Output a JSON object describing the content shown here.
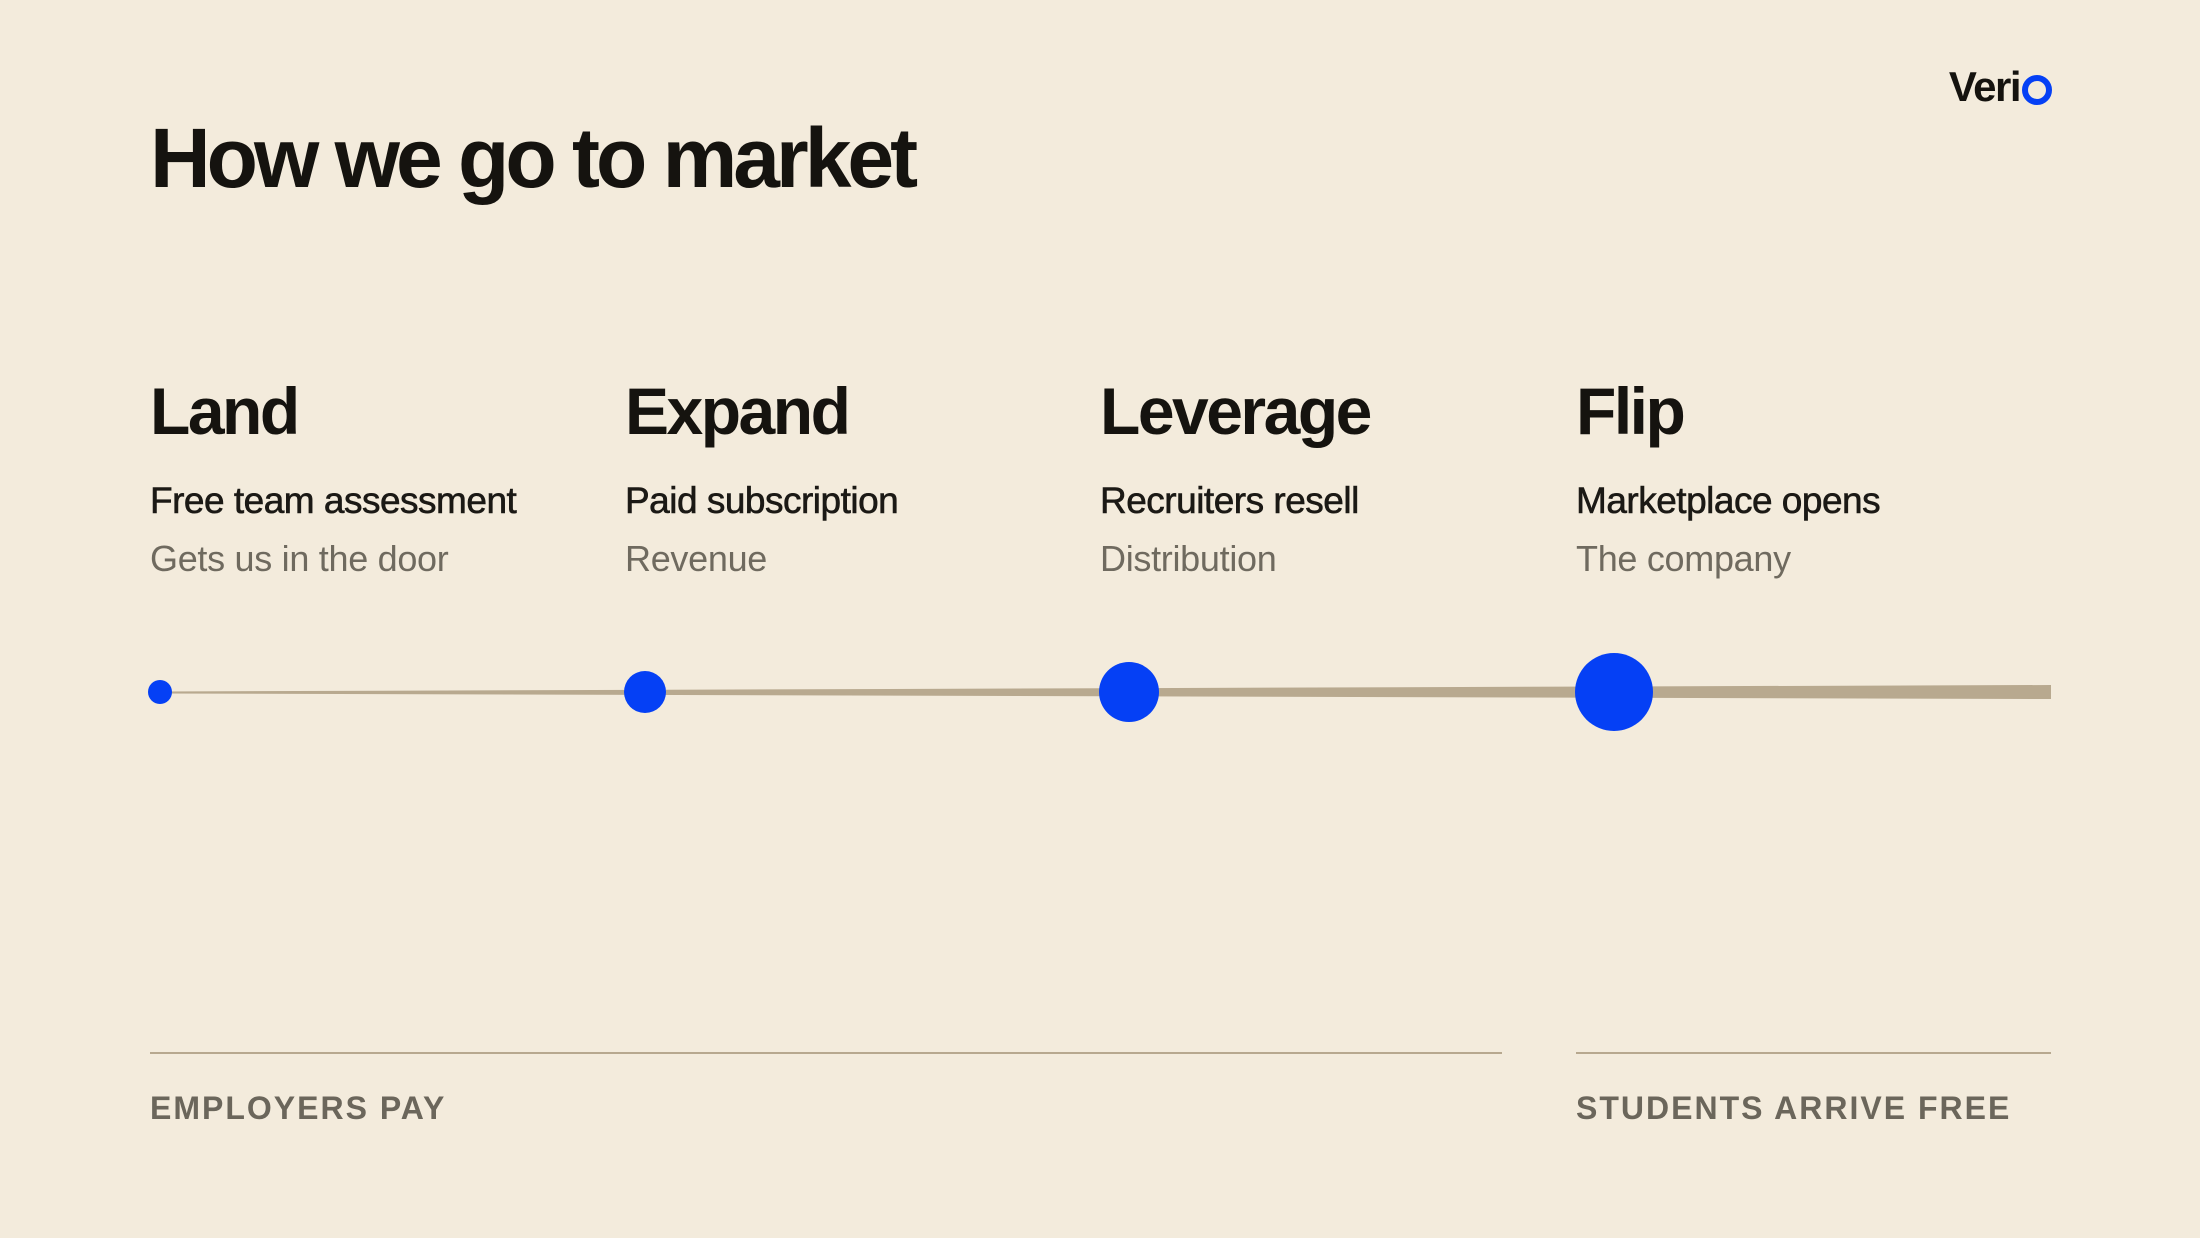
{
  "logo": {
    "text": "Veri"
  },
  "title": "How we go to market",
  "stages": [
    {
      "name": "Land",
      "subtitle": "Free team assessment",
      "note": "Gets us in the door"
    },
    {
      "name": "Expand",
      "subtitle": "Paid subscription",
      "note": "Revenue"
    },
    {
      "name": "Leverage",
      "subtitle": "Recruiters resell",
      "note": "Distribution"
    },
    {
      "name": "Flip",
      "subtitle": "Marketplace opens",
      "note": "The company"
    }
  ],
  "footer": {
    "left_label": "EMPLOYERS PAY",
    "right_label": "STUDENTS ARRIVE FREE"
  },
  "colors": {
    "background": "#f3ebdc",
    "accent": "#0540f5",
    "line": "#b8a98f",
    "text": "#15130f",
    "muted": "#6f6a5f"
  }
}
